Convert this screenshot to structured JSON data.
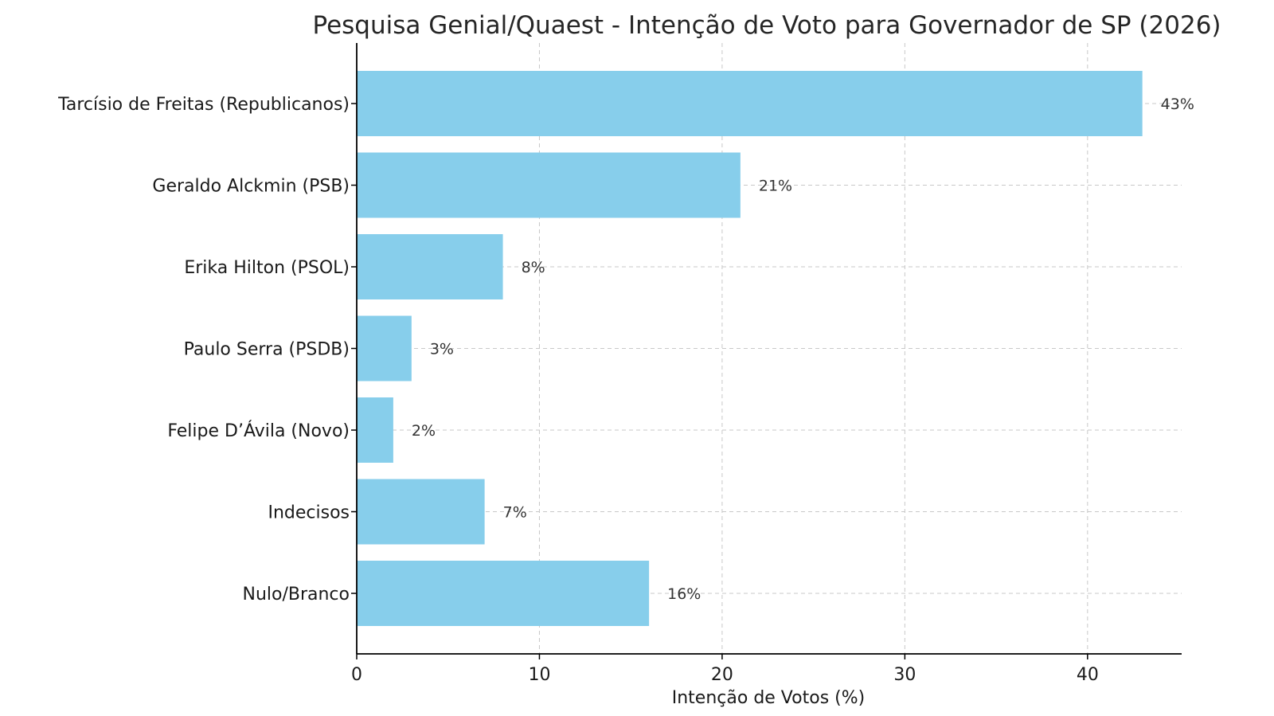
{
  "chart_data": {
    "type": "bar",
    "orientation": "horizontal",
    "title": "Pesquisa Genial/Quaest - Intenção de Voto para Governador de SP (2026)",
    "xlabel": "Intenção de Votos (%)",
    "ylabel": "",
    "categories": [
      "Tarcísio de Freitas (Republicanos)",
      "Geraldo Alckmin (PSB)",
      "Erika Hilton (PSOL)",
      "Paulo Serra (PSDB)",
      "Felipe D’Ávila (Novo)",
      "Indecisos",
      "Nulo/Branco"
    ],
    "values": [
      43,
      21,
      8,
      3,
      2,
      7,
      16
    ],
    "data_labels": [
      "43%",
      "21%",
      "8%",
      "3%",
      "2%",
      "7%",
      "16%"
    ],
    "xlim": [
      0,
      45.15
    ],
    "xticks": [
      0,
      10,
      20,
      30,
      40
    ],
    "xtick_labels": [
      "0",
      "10",
      "20",
      "30",
      "40"
    ],
    "grid": true,
    "bar_color": "#87CEEB"
  }
}
